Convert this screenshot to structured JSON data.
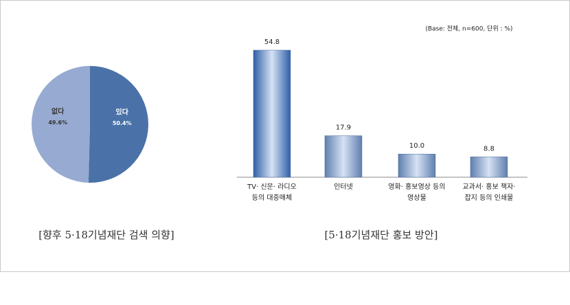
{
  "chart_data": [
    {
      "type": "pie",
      "caption": "[향후 5·18기념재단 검색 의향]",
      "categories": [
        "있다",
        "없다"
      ],
      "values": [
        50.4,
        49.6
      ],
      "value_labels": [
        "50.4%",
        "49.6%"
      ],
      "colors": [
        "#4a72a8",
        "#97aad1"
      ]
    },
    {
      "type": "bar",
      "caption": "[5·18기념재단 홍보 방안]",
      "note": "(Base: 전체, n=600, 단위 : %)",
      "categories": [
        "TV· 신문· 라디오\n등의 대중매체",
        "인터넷",
        "영화· 홍보영상 등의\n영상물",
        "교과서· 홍보 책자·\n잡지 등의 인쇄물"
      ],
      "values": [
        54.8,
        17.9,
        10.0,
        8.8
      ],
      "value_labels": [
        "54.8",
        "17.9",
        "10.0",
        "8.8"
      ],
      "colors": [
        "#2f5ea8",
        "#5f7fae",
        "#5f7fae",
        "#5f7fae"
      ]
    }
  ]
}
